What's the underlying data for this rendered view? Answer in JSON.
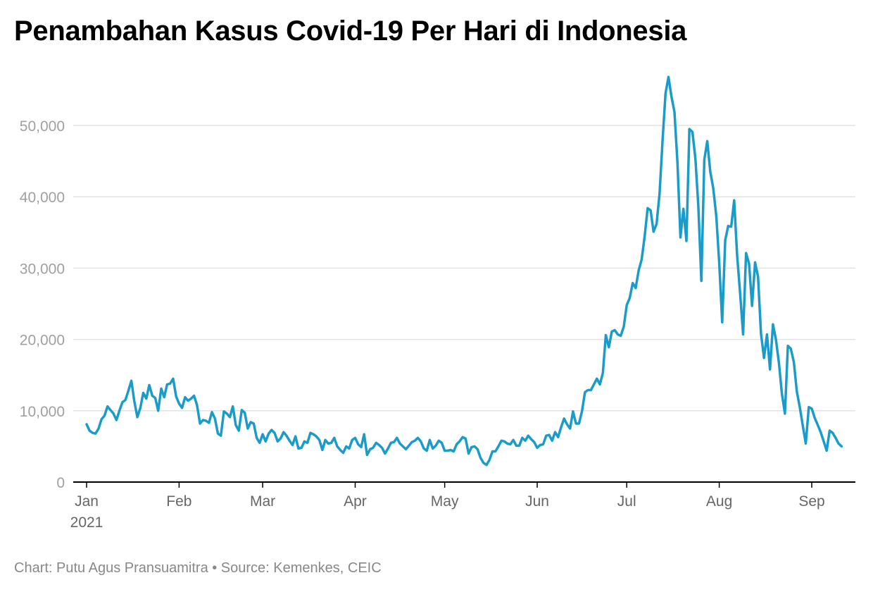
{
  "title": "Penambahan Kasus Covid-19 Per Hari di Indonesia",
  "footer": "Chart: Putu Agus Pransuamitra • Source: Kemenkes, CEIC",
  "colors": {
    "line": "#1a9bc8",
    "grid": "#e2e2e2",
    "axis": "#000000"
  },
  "chart_data": {
    "type": "line",
    "title": "Penambahan Kasus Covid-19 Per Hari di Indonesia",
    "xlabel": "",
    "ylabel": "",
    "ylim": [
      0,
      57000
    ],
    "grid": true,
    "yticks": [
      0,
      10000,
      20000,
      30000,
      40000,
      50000
    ],
    "ytick_labels": [
      "0",
      "10,000",
      "20,000",
      "30,000",
      "40,000",
      "50,000"
    ],
    "xticks": [
      {
        "date": "2021-01-01",
        "label": "Jan",
        "sublabel": "2021"
      },
      {
        "date": "2021-02-01",
        "label": "Feb"
      },
      {
        "date": "2021-03-01",
        "label": "Mar"
      },
      {
        "date": "2021-04-01",
        "label": "Apr"
      },
      {
        "date": "2021-05-01",
        "label": "May"
      },
      {
        "date": "2021-06-01",
        "label": "Jun"
      },
      {
        "date": "2021-07-01",
        "label": "Jul"
      },
      {
        "date": "2021-08-01",
        "label": "Aug"
      },
      {
        "date": "2021-09-01",
        "label": "Sep"
      }
    ],
    "xlim": [
      "2021-01-01",
      "2021-09-15"
    ],
    "series": [
      {
        "points": [
          [
            "2021-01-01",
            8100
          ],
          [
            "2021-01-02",
            7200
          ],
          [
            "2021-01-03",
            6900
          ],
          [
            "2021-01-04",
            6800
          ],
          [
            "2021-01-05",
            7500
          ],
          [
            "2021-01-06",
            8800
          ],
          [
            "2021-01-07",
            9300
          ],
          [
            "2021-01-08",
            10600
          ],
          [
            "2021-01-09",
            10100
          ],
          [
            "2021-01-10",
            9600
          ],
          [
            "2021-01-11",
            8700
          ],
          [
            "2021-01-12",
            10000
          ],
          [
            "2021-01-13",
            11200
          ],
          [
            "2021-01-14",
            11500
          ],
          [
            "2021-01-15",
            12800
          ],
          [
            "2021-01-16",
            14200
          ],
          [
            "2021-01-17",
            11300
          ],
          [
            "2021-01-18",
            9100
          ],
          [
            "2021-01-19",
            10400
          ],
          [
            "2021-01-20",
            12500
          ],
          [
            "2021-01-21",
            11700
          ],
          [
            "2021-01-22",
            13600
          ],
          [
            "2021-01-23",
            12100
          ],
          [
            "2021-01-24",
            11800
          ],
          [
            "2021-01-25",
            10000
          ],
          [
            "2021-01-26",
            13100
          ],
          [
            "2021-01-27",
            11900
          ],
          [
            "2021-01-28",
            13700
          ],
          [
            "2021-01-29",
            13800
          ],
          [
            "2021-01-30",
            14500
          ],
          [
            "2021-01-31",
            12000
          ],
          [
            "2021-02-01",
            11000
          ],
          [
            "2021-02-02",
            10400
          ],
          [
            "2021-02-03",
            11900
          ],
          [
            "2021-02-04",
            11400
          ],
          [
            "2021-02-05",
            11700
          ],
          [
            "2021-02-06",
            12100
          ],
          [
            "2021-02-07",
            10800
          ],
          [
            "2021-02-08",
            8200
          ],
          [
            "2021-02-09",
            8700
          ],
          [
            "2021-02-10",
            8600
          ],
          [
            "2021-02-11",
            8300
          ],
          [
            "2021-02-12",
            9800
          ],
          [
            "2021-02-13",
            8900
          ],
          [
            "2021-02-14",
            6800
          ],
          [
            "2021-02-15",
            6500
          ],
          [
            "2021-02-16",
            9900
          ],
          [
            "2021-02-17",
            9600
          ],
          [
            "2021-02-18",
            9100
          ],
          [
            "2021-02-19",
            10600
          ],
          [
            "2021-02-20",
            8000
          ],
          [
            "2021-02-21",
            7200
          ],
          [
            "2021-02-22",
            10100
          ],
          [
            "2021-02-23",
            9700
          ],
          [
            "2021-02-24",
            7500
          ],
          [
            "2021-02-25",
            8400
          ],
          [
            "2021-02-26",
            8200
          ],
          [
            "2021-02-27",
            6200
          ],
          [
            "2021-02-28",
            5500
          ],
          [
            "2021-03-01",
            6700
          ],
          [
            "2021-03-02",
            5700
          ],
          [
            "2021-03-03",
            6800
          ],
          [
            "2021-03-04",
            7300
          ],
          [
            "2021-03-05",
            6900
          ],
          [
            "2021-03-06",
            5700
          ],
          [
            "2021-03-07",
            6100
          ],
          [
            "2021-03-08",
            7000
          ],
          [
            "2021-03-09",
            6500
          ],
          [
            "2021-03-10",
            5800
          ],
          [
            "2021-03-11",
            5200
          ],
          [
            "2021-03-12",
            6400
          ],
          [
            "2021-03-13",
            4700
          ],
          [
            "2021-03-14",
            4800
          ],
          [
            "2021-03-15",
            5700
          ],
          [
            "2021-03-16",
            5500
          ],
          [
            "2021-03-17",
            6900
          ],
          [
            "2021-03-18",
            6700
          ],
          [
            "2021-03-19",
            6400
          ],
          [
            "2021-03-20",
            5900
          ],
          [
            "2021-03-21",
            4500
          ],
          [
            "2021-03-22",
            5900
          ],
          [
            "2021-03-23",
            5400
          ],
          [
            "2021-03-24",
            5500
          ],
          [
            "2021-03-25",
            6200
          ],
          [
            "2021-03-26",
            5000
          ],
          [
            "2021-03-27",
            4500
          ],
          [
            "2021-03-28",
            4100
          ],
          [
            "2021-03-29",
            5000
          ],
          [
            "2021-03-30",
            4700
          ],
          [
            "2021-03-31",
            5900
          ],
          [
            "2021-04-01",
            6200
          ],
          [
            "2021-04-02",
            5300
          ],
          [
            "2021-04-03",
            4900
          ],
          [
            "2021-04-04",
            6700
          ],
          [
            "2021-04-05",
            3800
          ],
          [
            "2021-04-06",
            4600
          ],
          [
            "2021-04-07",
            4800
          ],
          [
            "2021-04-08",
            5500
          ],
          [
            "2021-04-09",
            5200
          ],
          [
            "2021-04-10",
            4800
          ],
          [
            "2021-04-11",
            4000
          ],
          [
            "2021-04-12",
            4700
          ],
          [
            "2021-04-13",
            5500
          ],
          [
            "2021-04-14",
            5600
          ],
          [
            "2021-04-15",
            6200
          ],
          [
            "2021-04-16",
            5400
          ],
          [
            "2021-04-17",
            5000
          ],
          [
            "2021-04-18",
            4600
          ],
          [
            "2021-04-19",
            5100
          ],
          [
            "2021-04-20",
            5600
          ],
          [
            "2021-04-21",
            5800
          ],
          [
            "2021-04-22",
            6200
          ],
          [
            "2021-04-23",
            5700
          ],
          [
            "2021-04-24",
            4700
          ],
          [
            "2021-04-25",
            4400
          ],
          [
            "2021-04-26",
            5900
          ],
          [
            "2021-04-27",
            4700
          ],
          [
            "2021-04-28",
            5100
          ],
          [
            "2021-04-29",
            5800
          ],
          [
            "2021-04-30",
            5500
          ],
          [
            "2021-05-01",
            4400
          ],
          [
            "2021-05-02",
            4400
          ],
          [
            "2021-05-03",
            4500
          ],
          [
            "2021-05-04",
            4300
          ],
          [
            "2021-05-05",
            5300
          ],
          [
            "2021-05-06",
            5700
          ],
          [
            "2021-05-07",
            6300
          ],
          [
            "2021-05-08",
            6100
          ],
          [
            "2021-05-09",
            4000
          ],
          [
            "2021-05-10",
            4900
          ],
          [
            "2021-05-11",
            5000
          ],
          [
            "2021-05-12",
            4600
          ],
          [
            "2021-05-13",
            3400
          ],
          [
            "2021-05-14",
            2700
          ],
          [
            "2021-05-15",
            2400
          ],
          [
            "2021-05-16",
            3100
          ],
          [
            "2021-05-17",
            4300
          ],
          [
            "2021-05-18",
            4300
          ],
          [
            "2021-05-19",
            5000
          ],
          [
            "2021-05-20",
            5800
          ],
          [
            "2021-05-21",
            5700
          ],
          [
            "2021-05-22",
            5400
          ],
          [
            "2021-05-23",
            5300
          ],
          [
            "2021-05-24",
            5900
          ],
          [
            "2021-05-25",
            5100
          ],
          [
            "2021-05-26",
            5100
          ],
          [
            "2021-05-27",
            6200
          ],
          [
            "2021-05-28",
            5800
          ],
          [
            "2021-05-29",
            6500
          ],
          [
            "2021-05-30",
            6000
          ],
          [
            "2021-05-31",
            5600
          ],
          [
            "2021-06-01",
            4800
          ],
          [
            "2021-06-02",
            5200
          ],
          [
            "2021-06-03",
            5300
          ],
          [
            "2021-06-04",
            6500
          ],
          [
            "2021-06-05",
            6600
          ],
          [
            "2021-06-06",
            5800
          ],
          [
            "2021-06-07",
            7000
          ],
          [
            "2021-06-08",
            6300
          ],
          [
            "2021-06-09",
            7700
          ],
          [
            "2021-06-10",
            8900
          ],
          [
            "2021-06-11",
            8100
          ],
          [
            "2021-06-12",
            7500
          ],
          [
            "2021-06-13",
            9900
          ],
          [
            "2021-06-14",
            8200
          ],
          [
            "2021-06-15",
            8200
          ],
          [
            "2021-06-16",
            9900
          ],
          [
            "2021-06-17",
            12600
          ],
          [
            "2021-06-18",
            12900
          ],
          [
            "2021-06-19",
            12900
          ],
          [
            "2021-06-20",
            13700
          ],
          [
            "2021-06-21",
            14500
          ],
          [
            "2021-06-22",
            13700
          ],
          [
            "2021-06-23",
            15300
          ],
          [
            "2021-06-24",
            20600
          ],
          [
            "2021-06-25",
            18900
          ],
          [
            "2021-06-26",
            21100
          ],
          [
            "2021-06-27",
            21300
          ],
          [
            "2021-06-28",
            20700
          ],
          [
            "2021-06-29",
            20500
          ],
          [
            "2021-06-30",
            21800
          ],
          [
            "2021-07-01",
            24800
          ],
          [
            "2021-07-02",
            25800
          ],
          [
            "2021-07-03",
            27900
          ],
          [
            "2021-07-04",
            27200
          ],
          [
            "2021-07-05",
            29700
          ],
          [
            "2021-07-06",
            31200
          ],
          [
            "2021-07-07",
            34400
          ],
          [
            "2021-07-08",
            38400
          ],
          [
            "2021-07-09",
            38100
          ],
          [
            "2021-07-10",
            35100
          ],
          [
            "2021-07-11",
            36200
          ],
          [
            "2021-07-12",
            40400
          ],
          [
            "2021-07-13",
            47900
          ],
          [
            "2021-07-14",
            54500
          ],
          [
            "2021-07-15",
            56800
          ],
          [
            "2021-07-16",
            54000
          ],
          [
            "2021-07-17",
            51900
          ],
          [
            "2021-07-18",
            44700
          ],
          [
            "2021-07-19",
            34300
          ],
          [
            "2021-07-20",
            38300
          ],
          [
            "2021-07-21",
            33800
          ],
          [
            "2021-07-22",
            49500
          ],
          [
            "2021-07-23",
            49100
          ],
          [
            "2021-07-24",
            45400
          ],
          [
            "2021-07-25",
            38700
          ],
          [
            "2021-07-26",
            28200
          ],
          [
            "2021-07-27",
            45200
          ],
          [
            "2021-07-28",
            47800
          ],
          [
            "2021-07-29",
            43500
          ],
          [
            "2021-07-30",
            41200
          ],
          [
            "2021-07-31",
            37300
          ],
          [
            "2021-08-01",
            30700
          ],
          [
            "2021-08-02",
            22400
          ],
          [
            "2021-08-03",
            33900
          ],
          [
            "2021-08-04",
            35900
          ],
          [
            "2021-08-05",
            35800
          ],
          [
            "2021-08-06",
            39500
          ],
          [
            "2021-08-07",
            31800
          ],
          [
            "2021-08-08",
            26400
          ],
          [
            "2021-08-09",
            20700
          ],
          [
            "2021-08-10",
            32100
          ],
          [
            "2021-08-11",
            30600
          ],
          [
            "2021-08-12",
            24700
          ],
          [
            "2021-08-13",
            30800
          ],
          [
            "2021-08-14",
            28800
          ],
          [
            "2021-08-15",
            20800
          ],
          [
            "2021-08-16",
            17400
          ],
          [
            "2021-08-17",
            20700
          ],
          [
            "2021-08-18",
            15800
          ],
          [
            "2021-08-19",
            22100
          ],
          [
            "2021-08-20",
            20000
          ],
          [
            "2021-08-21",
            16700
          ],
          [
            "2021-08-22",
            12400
          ],
          [
            "2021-08-23",
            9600
          ],
          [
            "2021-08-24",
            19100
          ],
          [
            "2021-08-25",
            18700
          ],
          [
            "2021-08-26",
            16800
          ],
          [
            "2021-08-27",
            12700
          ],
          [
            "2021-08-28",
            10500
          ],
          [
            "2021-08-29",
            7900
          ],
          [
            "2021-08-30",
            5400
          ],
          [
            "2021-08-31",
            10500
          ],
          [
            "2021-09-01",
            10300
          ],
          [
            "2021-09-02",
            9000
          ],
          [
            "2021-09-03",
            8000
          ],
          [
            "2021-09-04",
            7000
          ],
          [
            "2021-09-05",
            5700
          ],
          [
            "2021-09-06",
            4400
          ],
          [
            "2021-09-07",
            7200
          ],
          [
            "2021-09-08",
            6900
          ],
          [
            "2021-09-09",
            6200
          ],
          [
            "2021-09-10",
            5400
          ],
          [
            "2021-09-11",
            5000
          ]
        ]
      }
    ]
  }
}
